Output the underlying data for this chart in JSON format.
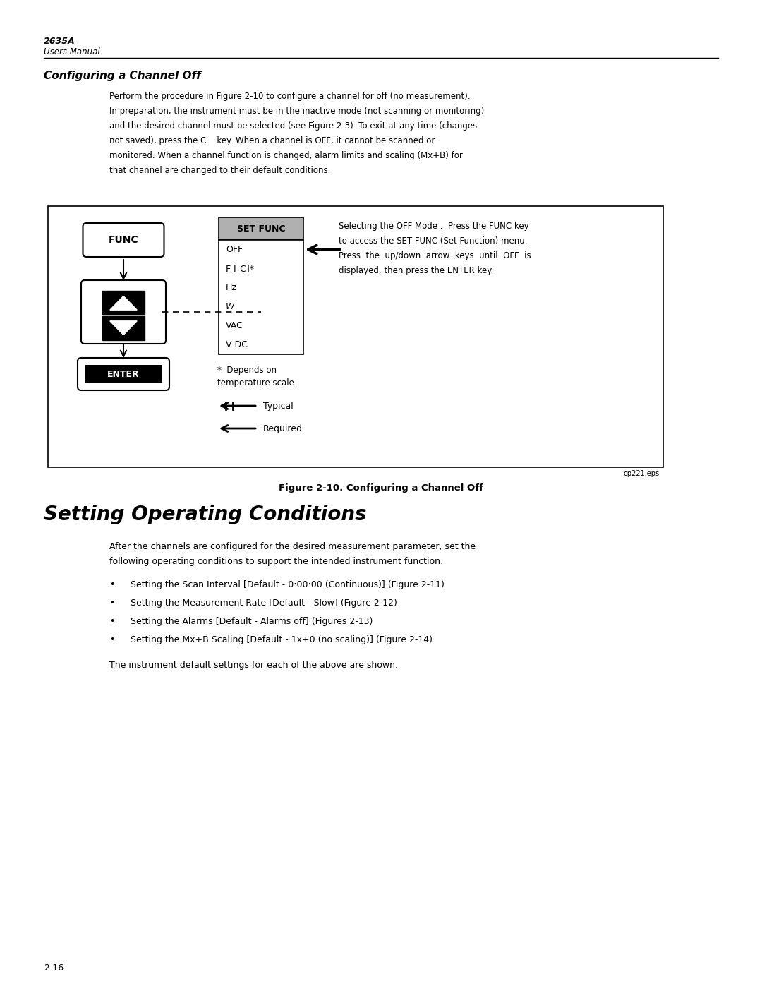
{
  "page_title": "2635A",
  "page_subtitle": "Users Manual",
  "section_title": "Configuring a Channel Off",
  "body_text": "Perform the procedure in Figure 2-10 to configure a channel for off (no measurement).\nIn preparation, the instrument must be in the inactive mode (not scanning or monitoring)\nand the desired channel must be selected (see Figure 2-3). To exit at any time (changes\nnot saved), press the C    key. When a channel is OFF, it cannot be scanned or\nmonitored. When a channel function is changed, alarm limits and scaling (Mx+B) for\nthat channel are changed to their default conditions.",
  "func_label": "FUNC",
  "set_func_label": "SET FUNC",
  "menu_items": [
    "OFF",
    "F [ C]*",
    "Hz",
    "W",
    "VAC",
    "V DC"
  ],
  "menu_italic": [
    false,
    false,
    false,
    true,
    false,
    false
  ],
  "enter_label": "ENTER",
  "footnote_line1": "*  Depends on",
  "footnote_line2": "temperature scale.",
  "typical_label": "Typical",
  "required_label": "Required",
  "side_note_lines": [
    "Selecting the OFF Mode .  Press the FUNC key",
    "to access the SET FUNC (Set Function) menu.",
    "Press  the  up/down  arrow  keys  until  OFF  is",
    "displayed, then press the ENTER key."
  ],
  "figure_caption": "Figure 2-10. Configuring a Channel Off",
  "eps_label": "op221.eps",
  "big_title": "Setting Operating Conditions",
  "big_body_lines": [
    "After the channels are configured for the desired measurement parameter, set the",
    "following operating conditions to support the intended instrument function:"
  ],
  "bullet_prefix": "•",
  "bullets": [
    "Setting the Scan Interval [Default - 0:00:00 (Continuous)] (Figure 2-11)",
    "Setting the Measurement Rate [Default - Slow] (Figure 2-12)",
    "Setting the Alarms [Default - Alarms off] (Figures 2-13)",
    "Setting the Mx+B Scaling [Default - 1x+0 (no scaling)] (Figure 2-14)"
  ],
  "closing_text": "The instrument default settings for each of the above are shown.",
  "page_number": "2-16",
  "bg_color": "#ffffff",
  "text_color": "#000000"
}
